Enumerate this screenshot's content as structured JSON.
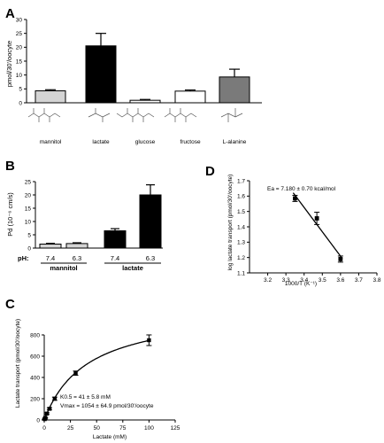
{
  "panels": {
    "A": "A",
    "B": "B",
    "C": "C",
    "D": "D"
  },
  "colors": {
    "light_gray": "#d4d4d4",
    "black": "#000000",
    "white": "#ffffff",
    "dark_gray": "#7a7a7a"
  },
  "chart_data": [
    {
      "panel": "A",
      "type": "bar",
      "ylabel": "pmol/30'/oocyte",
      "ylim": [
        0,
        30
      ],
      "yticks": [
        "0",
        "5",
        "10",
        "15",
        "20",
        "25",
        "30"
      ],
      "yticks_values": [
        0,
        5,
        10,
        15,
        20,
        25,
        30
      ],
      "categories": [
        "mannitol",
        "lactate",
        "glucose",
        "fructose",
        "L-alanine"
      ],
      "values": [
        4.3,
        20.5,
        0.9,
        4.2,
        9.3
      ],
      "errors": [
        0.4,
        4.5,
        0.3,
        0.4,
        2.8
      ],
      "bar_colors": [
        "#d4d4d4",
        "#000000",
        "#ffffff",
        "#ffffff",
        "#7a7a7a"
      ]
    },
    {
      "panel": "B",
      "type": "bar",
      "ylabel": "Pd (10⁻⁶ cm/s)",
      "ylim": [
        0,
        25
      ],
      "yticks": [
        "0",
        "5",
        "10",
        "15",
        "20",
        "25"
      ],
      "yticks_values": [
        0,
        5,
        10,
        15,
        20,
        25
      ],
      "ph_label": "pH:",
      "categories": [
        "7.4",
        "6.3",
        "7.4",
        "6.3"
      ],
      "groups": [
        "mannitol",
        "lactate"
      ],
      "values": [
        1.5,
        1.7,
        6.5,
        20.0
      ],
      "errors": [
        0.3,
        0.3,
        0.8,
        3.8
      ],
      "bar_colors": [
        "#d4d4d4",
        "#d4d4d4",
        "#000000",
        "#000000"
      ]
    },
    {
      "panel": "C",
      "type": "scatter",
      "xlabel": "Lactate (mM)",
      "ylabel": "Lactate transport (pmol/30'/oocyte)",
      "xlim": [
        0,
        125
      ],
      "ylim": [
        0,
        800
      ],
      "xticks": [
        "0",
        "25",
        "50",
        "75",
        "100",
        "125"
      ],
      "xticks_values": [
        0,
        25,
        50,
        75,
        100,
        125
      ],
      "yticks": [
        "0",
        "200",
        "400",
        "600",
        "800"
      ],
      "yticks_values": [
        0,
        200,
        400,
        600,
        800
      ],
      "x": [
        0.5,
        1,
        2.5,
        5,
        10,
        30,
        100
      ],
      "y": [
        8,
        20,
        60,
        105,
        200,
        440,
        750
      ],
      "y_errors": [
        3,
        4,
        8,
        10,
        15,
        20,
        50
      ],
      "fit": {
        "Km": 41,
        "Vmax": 1054
      },
      "annotation_km": "K0.5 = 41 ± 5.8 mM",
      "annotation_vmax": "Vmax = 1054 ± 64.9 pmol/30'/oocyte"
    },
    {
      "panel": "D",
      "type": "scatter",
      "xlabel": "1000/T (K⁻¹)",
      "ylabel": "log lactate transport (pmol/30'/oocyte)",
      "xlim": [
        3.1,
        3.8
      ],
      "ylim": [
        1.1,
        1.7
      ],
      "xticks": [
        "3.2",
        "3.3",
        "3.4",
        "3.5",
        "3.6",
        "3.7",
        "3.8"
      ],
      "xticks_values": [
        3.2,
        3.3,
        3.4,
        3.5,
        3.6,
        3.7,
        3.8
      ],
      "yticks": [
        "1.1",
        "1.2",
        "1.3",
        "1.4",
        "1.5",
        "1.6",
        "1.7"
      ],
      "yticks_values": [
        1.1,
        1.2,
        1.3,
        1.4,
        1.5,
        1.6,
        1.7
      ],
      "x": [
        3.35,
        3.47,
        3.6
      ],
      "y": [
        1.585,
        1.455,
        1.19
      ],
      "y_errors": [
        0.02,
        0.04,
        0.02
      ],
      "annotation": "Ea = 7.180 ± 0.70 kcal/mol"
    }
  ]
}
